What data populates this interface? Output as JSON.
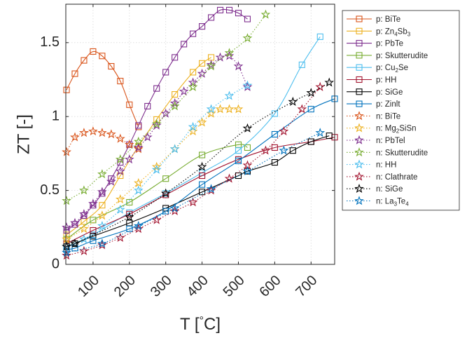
{
  "chart_data": {
    "type": "line",
    "title": "",
    "xlabel": "T [°C]",
    "ylabel": "ZT [-]",
    "xlim": [
      25,
      765
    ],
    "ylim": [
      0,
      1.76
    ],
    "x_ticks": [
      100,
      200,
      300,
      400,
      500,
      600,
      700
    ],
    "y_ticks": [
      0,
      0.5,
      1,
      1.5
    ],
    "y_tick_labels": [
      "0",
      "0.5",
      "1",
      "1.5"
    ],
    "grid": true,
    "legend_position": "outside-right",
    "series": [
      {
        "name": "p: BiTe",
        "name_parts": [
          "p: BiTe"
        ],
        "color": "#D95319",
        "marker": "square",
        "dash": "solid",
        "x": [
          27,
          50,
          75,
          100,
          125,
          150,
          175,
          200,
          225
        ],
        "y": [
          1.18,
          1.29,
          1.38,
          1.44,
          1.41,
          1.34,
          1.24,
          1.08,
          0.93
        ]
      },
      {
        "name": "p: Zn4Sb3",
        "name_parts": [
          "p: Zn",
          "4",
          "Sb",
          "3"
        ],
        "color": "#EDB120",
        "marker": "square",
        "dash": "solid",
        "x": [
          27,
          75,
          125,
          175,
          225,
          275,
          325,
          375,
          400,
          425
        ],
        "y": [
          0.2,
          0.29,
          0.4,
          0.6,
          0.8,
          0.98,
          1.15,
          1.3,
          1.36,
          1.4
        ]
      },
      {
        "name": "p: PbTe",
        "name_parts": [
          "p: PbTe"
        ],
        "color": "#7E2F8E",
        "marker": "square",
        "dash": "solid",
        "x": [
          27,
          50,
          75,
          100,
          125,
          150,
          175,
          200,
          225,
          250,
          275,
          300,
          325,
          350,
          375,
          400,
          425,
          450,
          475,
          500,
          525
        ],
        "y": [
          0.23,
          0.27,
          0.33,
          0.4,
          0.48,
          0.58,
          0.69,
          0.81,
          0.94,
          1.07,
          1.19,
          1.3,
          1.4,
          1.49,
          1.56,
          1.61,
          1.67,
          1.72,
          1.72,
          1.7,
          1.66
        ]
      },
      {
        "name": "p: Skutterudite",
        "name_parts": [
          "p: Skutterudite"
        ],
        "color": "#77AC30",
        "marker": "square",
        "dash": "solid",
        "x": [
          27,
          100,
          200,
          300,
          400,
          500,
          525
        ],
        "y": [
          0.17,
          0.3,
          0.42,
          0.58,
          0.74,
          0.81,
          0.79
        ]
      },
      {
        "name": "p: Cu2Se",
        "name_parts": [
          "p: Cu",
          "2",
          "Se"
        ],
        "color": "#4DBEEE",
        "marker": "square",
        "dash": "solid",
        "x": [
          27,
          100,
          200,
          300,
          400,
          500,
          600,
          675,
          725
        ],
        "y": [
          0.12,
          0.2,
          0.35,
          0.48,
          0.62,
          0.77,
          1.02,
          1.35,
          1.54
        ]
      },
      {
        "name": "p: HH",
        "name_parts": [
          "p: HH"
        ],
        "color": "#A2142F",
        "marker": "square",
        "dash": "solid",
        "x": [
          27,
          100,
          200,
          300,
          400,
          500,
          600,
          700,
          765
        ],
        "y": [
          0.14,
          0.23,
          0.34,
          0.47,
          0.6,
          0.71,
          0.79,
          0.83,
          0.86
        ]
      },
      {
        "name": "p: SiGe",
        "name_parts": [
          "p: SiGe"
        ],
        "color": "#000000",
        "marker": "square",
        "dash": "solid",
        "x": [
          27,
          50,
          100,
          200,
          300,
          400,
          500,
          525,
          600,
          650,
          700,
          750
        ],
        "y": [
          0.12,
          0.14,
          0.19,
          0.28,
          0.38,
          0.49,
          0.6,
          0.63,
          0.69,
          0.77,
          0.83,
          0.87
        ]
      },
      {
        "name": "p: Zinlt",
        "name_parts": [
          "p: Zinlt"
        ],
        "color": "#0072BD",
        "marker": "square",
        "dash": "solid",
        "x": [
          27,
          50,
          100,
          200,
          300,
          400,
          500,
          600,
          700,
          765
        ],
        "y": [
          0.1,
          0.11,
          0.16,
          0.24,
          0.36,
          0.54,
          0.7,
          0.88,
          1.05,
          1.12
        ]
      },
      {
        "name": "n: BiTe",
        "name_parts": [
          "n: BiTe"
        ],
        "color": "#D95319",
        "marker": "star",
        "dash": "dotted",
        "x": [
          27,
          50,
          75,
          100,
          125,
          150,
          175,
          200,
          225
        ],
        "y": [
          0.76,
          0.86,
          0.89,
          0.9,
          0.89,
          0.88,
          0.85,
          0.81,
          0.78
        ]
      },
      {
        "name": "n: Mg2SiSn",
        "name_parts": [
          "n: Mg",
          "2",
          "SiSn"
        ],
        "color": "#EDB120",
        "marker": "star",
        "dash": "dotted",
        "x": [
          27,
          75,
          125,
          175,
          225,
          275,
          325,
          375,
          400,
          425,
          450,
          475,
          500
        ],
        "y": [
          0.17,
          0.24,
          0.33,
          0.44,
          0.55,
          0.66,
          0.78,
          0.9,
          0.96,
          1.02,
          1.05,
          1.05,
          1.05
        ]
      },
      {
        "name": "n: PbTeI",
        "name_parts": [
          "n: PbTel"
        ],
        "color": "#7E2F8E",
        "marker": "star",
        "dash": "dotted",
        "x": [
          27,
          50,
          75,
          100,
          125,
          150,
          175,
          200,
          225,
          250,
          275,
          300,
          325,
          350,
          375,
          400,
          425,
          450,
          475,
          500,
          525
        ],
        "y": [
          0.25,
          0.28,
          0.34,
          0.41,
          0.49,
          0.56,
          0.63,
          0.71,
          0.79,
          0.86,
          0.94,
          1.02,
          1.09,
          1.17,
          1.23,
          1.29,
          1.35,
          1.4,
          1.41,
          1.34,
          1.2
        ]
      },
      {
        "name": "n: Skutterudite",
        "name_parts": [
          "n: Skutterudite"
        ],
        "color": "#77AC30",
        "marker": "star",
        "dash": "dotted",
        "x": [
          27,
          75,
          125,
          175,
          225,
          275,
          325,
          375,
          425,
          475,
          525,
          575
        ],
        "y": [
          0.43,
          0.5,
          0.61,
          0.71,
          0.83,
          0.95,
          1.07,
          1.2,
          1.34,
          1.43,
          1.53,
          1.69
        ]
      },
      {
        "name": "n: HH",
        "name_parts": [
          "n: HH"
        ],
        "color": "#4DBEEE",
        "marker": "star",
        "dash": "dotted",
        "x": [
          27,
          75,
          125,
          175,
          225,
          275,
          325,
          375,
          425,
          475,
          525
        ],
        "y": [
          0.12,
          0.17,
          0.26,
          0.37,
          0.5,
          0.64,
          0.78,
          0.93,
          1.05,
          1.14,
          1.21
        ]
      },
      {
        "name": "n: Clathrate",
        "name_parts": [
          "n: Clathrate"
        ],
        "color": "#A2142F",
        "marker": "star",
        "dash": "dotted",
        "x": [
          27,
          75,
          125,
          175,
          225,
          275,
          325,
          375,
          425,
          475,
          525,
          575,
          625,
          675,
          725
        ],
        "y": [
          0.06,
          0.09,
          0.13,
          0.18,
          0.24,
          0.3,
          0.36,
          0.42,
          0.5,
          0.58,
          0.67,
          0.77,
          0.9,
          1.05,
          1.2
        ]
      },
      {
        "name": "n: SiGe",
        "name_parts": [
          "n: SiGe"
        ],
        "color": "#000000",
        "marker": "star",
        "dash": "dotted",
        "x": [
          27,
          50,
          200,
          300,
          400,
          525,
          650,
          700,
          750
        ],
        "y": [
          0.12,
          0.14,
          0.32,
          0.48,
          0.66,
          0.92,
          1.1,
          1.16,
          1.23
        ]
      },
      {
        "name": "n: La3Te4",
        "name_parts": [
          "n: La",
          "3",
          "Te",
          "4"
        ],
        "color": "#0072BD",
        "marker": "star",
        "dash": "dotted",
        "x": [
          27,
          125,
          225,
          325,
          425,
          525,
          625,
          725
        ],
        "y": [
          0.08,
          0.14,
          0.26,
          0.38,
          0.51,
          0.63,
          0.77,
          0.89
        ]
      }
    ]
  }
}
